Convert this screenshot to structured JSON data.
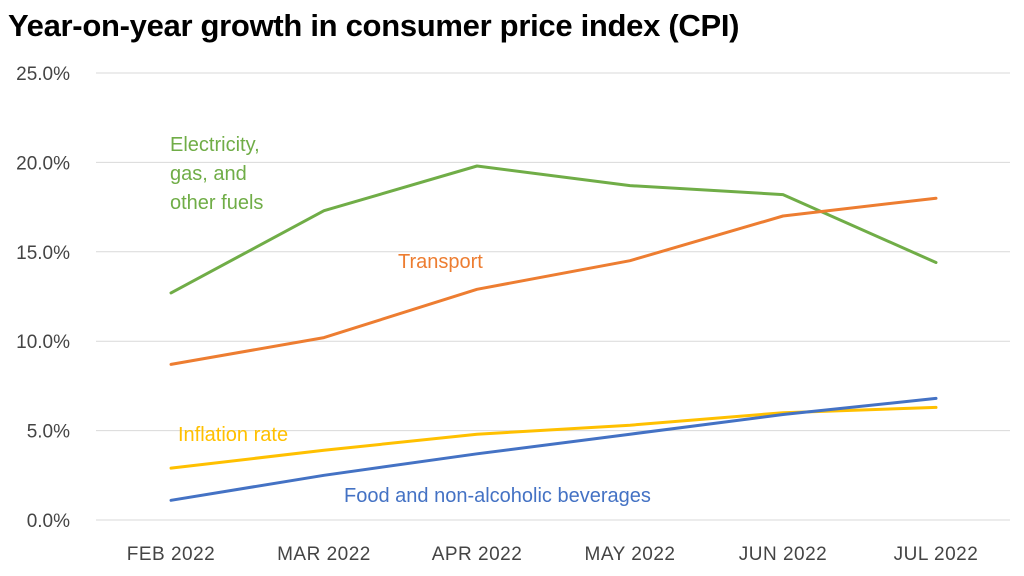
{
  "chart_data": {
    "type": "line",
    "title": "Year-on-year growth in consumer price index (CPI)",
    "categories": [
      "FEB 2022",
      "MAR 2022",
      "APR 2022",
      "MAY 2022",
      "JUN 2022",
      "JUL 2022"
    ],
    "ylim": [
      0,
      25
    ],
    "yticks": [
      "0.0%",
      "5.0%",
      "10.0%",
      "15.0%",
      "20.0%",
      "25.0%"
    ],
    "grid": true,
    "legend": "inline labels",
    "series": [
      {
        "name": "Electricity, gas, and other fuels",
        "label_lines": [
          "Electricity,",
          "gas, and",
          "other fuels"
        ],
        "color": "#70AD47",
        "values": [
          12.7,
          17.3,
          19.8,
          18.7,
          18.2,
          14.4
        ]
      },
      {
        "name": "Transport",
        "label_lines": [
          "Transport"
        ],
        "color": "#ED7D31",
        "values": [
          8.7,
          10.2,
          12.9,
          14.5,
          17.0,
          18.0
        ]
      },
      {
        "name": "Inflation rate",
        "label_lines": [
          "Inflation rate"
        ],
        "color": "#FFC000",
        "values": [
          2.9,
          3.9,
          4.8,
          5.3,
          6.0,
          6.3
        ]
      },
      {
        "name": "Food and non-alcoholic beverages",
        "label_lines": [
          "Food and non-alcoholic beverages"
        ],
        "color": "#4472C4",
        "values": [
          1.1,
          2.5,
          3.7,
          4.8,
          5.9,
          6.8
        ]
      }
    ]
  }
}
